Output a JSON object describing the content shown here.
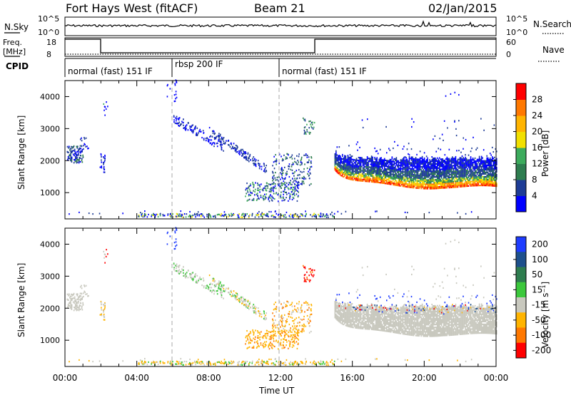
{
  "header": {
    "station": "Fort Hays West (fitACF)",
    "beam": "Beam 21",
    "date": "02/Jan/2015"
  },
  "strip_labels": {
    "nsky": "N.Sky",
    "nsky_ticks": [
      "10^5",
      "10^0"
    ],
    "nsearch": "N.Search",
    "nsearch_ticks": [
      "10^5",
      "10^0"
    ],
    "freq_line1": "Freq.",
    "freq_line2": "[MHz]",
    "freq_ticks": [
      "18",
      "8"
    ],
    "nave": "Nave",
    "nave_ticks": [
      "60",
      "0"
    ],
    "cpid": "CPID"
  },
  "cpid_segments": [
    {
      "label": "normal (fast) 151 IF",
      "start_hour": 0
    },
    {
      "label": "rbsp 200 IF",
      "start_hour": 6
    },
    {
      "label": "normal (fast) 151 IF",
      "start_hour": 12
    }
  ],
  "colors": {
    "power_scale": [
      "#0000ff",
      "#1e3c96",
      "#2e7d4f",
      "#3cab5c",
      "#f2e000",
      "#ffb400",
      "#ff7800",
      "#ff0000"
    ],
    "velocity_scale": [
      "#1e3cff",
      "#1e508c",
      "#2e7d4f",
      "#3cc83c",
      "#c8c8be",
      "#ffb400",
      "#ff7800",
      "#ff0000"
    ]
  },
  "chart_data": [
    {
      "panel": "power",
      "type": "heatmap",
      "xlabel": "",
      "ylabel": "Slant Range [km]",
      "x_range_hours": [
        0,
        24
      ],
      "ylim_km": [
        180,
        4500
      ],
      "y_ticks": [
        1000,
        2000,
        3000,
        4000
      ],
      "colorbar_label": "Power [dB]",
      "colorbar_ticks": [
        "4",
        "8",
        "12",
        "16",
        "20",
        "24",
        "28"
      ],
      "colorbar_range": [
        0,
        32
      ]
    },
    {
      "panel": "velocity",
      "type": "heatmap",
      "xlabel": "Time UT",
      "ylabel": "Slant Range [km]",
      "x_ticks": [
        "00:00",
        "04:00",
        "08:00",
        "12:00",
        "16:00",
        "20:00",
        "00:00"
      ],
      "x_range_hours": [
        0,
        24
      ],
      "ylim_km": [
        180,
        4500
      ],
      "y_ticks": [
        1000,
        2000,
        3000,
        4000
      ],
      "colorbar_label": "Velocity [m s⁻¹]",
      "colorbar_ticks": [
        "200",
        "100",
        "50",
        "15",
        "-15",
        "-50",
        "-100",
        "-200"
      ]
    }
  ]
}
